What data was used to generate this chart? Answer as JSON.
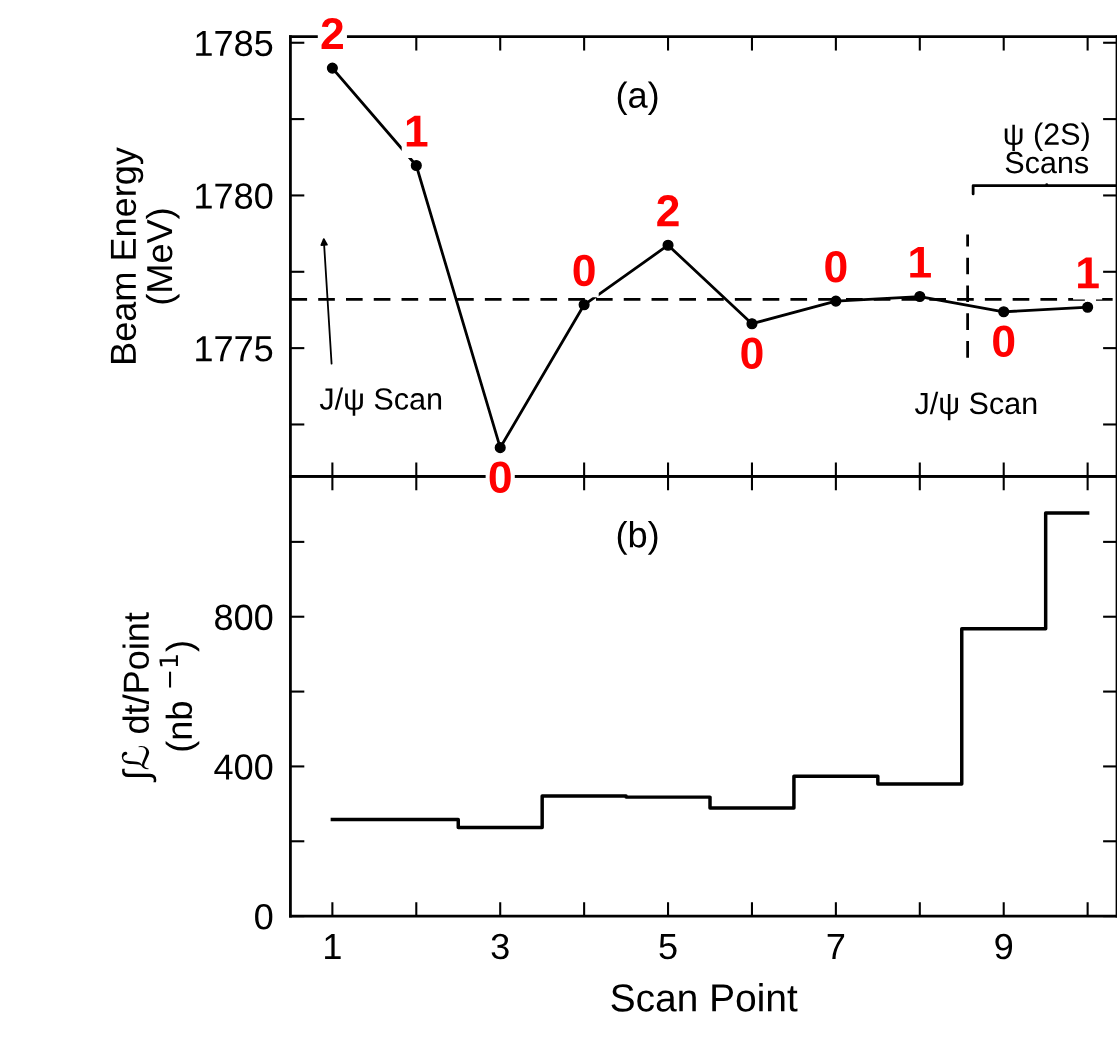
{
  "chart_data": [
    {
      "type": "line",
      "ylabel": "Beam Energy\n(MeV)",
      "x": [
        1,
        2,
        3,
        4,
        5,
        6,
        7,
        8,
        9,
        10
      ],
      "series": [
        {
          "color": "#000000",
          "values": [
            1784.17,
            1780.98,
            1771.74,
            1776.42,
            1778.37,
            1775.8,
            1776.54,
            1776.69,
            1776.19,
            1776.34
          ]
        }
      ],
      "marker": "circle",
      "line_style": "solid",
      "xlim": [
        0.5,
        10.35
      ],
      "xticks": [
        {
          "value": 1,
          "label": null
        },
        {
          "value": 2,
          "label": null
        },
        {
          "value": 3,
          "label": null
        },
        {
          "value": 4,
          "label": null
        },
        {
          "value": 5,
          "label": null
        },
        {
          "value": 6,
          "label": null
        },
        {
          "value": 7,
          "label": null
        },
        {
          "value": 8,
          "label": null
        },
        {
          "value": 9,
          "label": null
        },
        {
          "value": 10,
          "label": null
        }
      ],
      "ylim": [
        1770.8,
        1785.2
      ],
      "yticks": [
        {
          "value": 1772.5,
          "label": null
        },
        1775,
        {
          "value": 1777.5,
          "label": null
        },
        1780,
        {
          "value": 1782.5,
          "label": null
        },
        1785
      ],
      "tick_labels": "y",
      "grid": false,
      "ref_lines": [
        {
          "axis": "y",
          "value": 1776.6,
          "line_style": "dashed",
          "color": "#000000"
        },
        {
          "axis": "x",
          "value": 8.57,
          "line_style": "dashed",
          "color": "#000000"
        }
      ],
      "annotations": [
        "(a)",
        "J/ψ Scan",
        "J/ψ Scan",
        "ψ (2S)\nScans",
        {
          "text": "2",
          "x": 1,
          "y": 1784.17
        },
        {
          "text": "1",
          "x": 2,
          "y": 1780.98
        },
        {
          "text": "0",
          "x": 3,
          "y": 1771.74
        },
        {
          "text": "0",
          "x": 4,
          "y": 1776.42
        },
        {
          "text": "2",
          "x": 5,
          "y": 1778.37
        },
        {
          "text": "0",
          "x": 6,
          "y": 1775.8
        },
        {
          "text": "0",
          "x": 7,
          "y": 1776.54
        },
        {
          "text": "1",
          "x": 8,
          "y": 1776.69
        },
        {
          "text": "0",
          "x": 9,
          "y": 1776.19
        },
        {
          "text": "1",
          "x": 10,
          "y": 1776.34
        }
      ]
    },
    {
      "type": "step",
      "xlabel": "Scan Point",
      "ylabel": "∫ℒ dt/Point\n(nb $^{−1}$)",
      "x": [
        1,
        2,
        3,
        4,
        5,
        6,
        7,
        8,
        9,
        10
      ],
      "series": [
        {
          "color": "#000000",
          "values": [
            258,
            258,
            237,
            321,
            318,
            289,
            374,
            353,
            768,
            1077
          ]
        }
      ],
      "xlim": [
        0.5,
        10.35
      ],
      "xticks": [
        1,
        {
          "value": 2,
          "label": null
        },
        3,
        {
          "value": 4,
          "label": null
        },
        5,
        {
          "value": 6,
          "label": null
        },
        7,
        {
          "value": 8,
          "label": null
        },
        9,
        {
          "value": 10,
          "label": null
        }
      ],
      "ylim": [
        0,
        1175
      ],
      "yticks": [
        0,
        {
          "value": 200,
          "label": null
        },
        400,
        {
          "value": 600,
          "label": null
        },
        800,
        {
          "value": 1000,
          "label": null
        }
      ],
      "grid": false,
      "annotations": [
        "(b)"
      ]
    }
  ]
}
